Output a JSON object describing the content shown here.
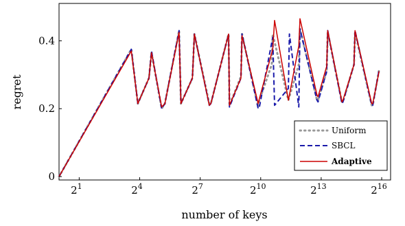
{
  "chart_data": {
    "type": "line",
    "xlabel": "number of keys",
    "ylabel": "regret",
    "x_scale": "log2",
    "x_ticks": [
      {
        "base": "2",
        "exp": "1"
      },
      {
        "base": "2",
        "exp": "4"
      },
      {
        "base": "2",
        "exp": "7"
      },
      {
        "base": "2",
        "exp": "10"
      },
      {
        "base": "2",
        "exp": "13"
      },
      {
        "base": "2",
        "exp": "16"
      }
    ],
    "y_ticks": [
      "0",
      "0.2",
      "0.4"
    ],
    "xlim": [
      1,
      89000
    ],
    "ylim": [
      -0.01,
      0.51
    ],
    "grid": false,
    "legend_position": "bottom-right",
    "series": [
      {
        "name": "Uniform",
        "color": "#999999",
        "style": "dotted",
        "x": [
          1,
          12,
          15,
          22,
          24,
          34,
          38,
          62,
          66,
          98,
          105,
          175,
          185,
          340,
          350,
          520,
          540,
          940,
          980,
          1500,
          1550,
          2650,
          2750,
          3800,
          3950,
          7100,
          7350,
          9900,
          10250,
          16700,
          17300,
          25300,
          26200,
          46500,
          48200,
          60000
        ],
        "y": [
          0,
          0.375,
          0.215,
          0.29,
          0.365,
          0.2,
          0.215,
          0.43,
          0.215,
          0.29,
          0.42,
          0.215,
          0.215,
          0.42,
          0.21,
          0.295,
          0.42,
          0.205,
          0.225,
          0.33,
          0.42,
          0.225,
          0.235,
          0.33,
          0.435,
          0.225,
          0.225,
          0.31,
          0.425,
          0.22,
          0.22,
          0.33,
          0.425,
          0.21,
          0.21,
          0.315
        ]
      },
      {
        "name": "SBCL",
        "color": "#1a1aaa",
        "style": "dashed",
        "x": [
          1,
          12,
          15,
          22,
          24,
          34,
          38,
          62,
          66,
          98,
          105,
          175,
          185,
          340,
          350,
          520,
          540,
          940,
          980,
          1550,
          1650,
          2650,
          2750,
          3800,
          3950,
          7100,
          7350,
          9900,
          10250,
          16700,
          17300,
          25300,
          26200,
          46500,
          48200,
          60000
        ],
        "y": [
          0,
          0.375,
          0.215,
          0.29,
          0.37,
          0.2,
          0.215,
          0.43,
          0.215,
          0.29,
          0.42,
          0.21,
          0.215,
          0.42,
          0.205,
          0.29,
          0.42,
          0.2,
          0.205,
          0.41,
          0.21,
          0.26,
          0.42,
          0.205,
          0.435,
          0.225,
          0.22,
          0.31,
          0.43,
          0.215,
          0.22,
          0.33,
          0.43,
          0.21,
          0.21,
          0.315
        ]
      },
      {
        "name": "Adaptive",
        "color": "#cc0000",
        "style": "solid",
        "x": [
          1,
          12,
          15,
          22,
          24,
          34,
          38,
          62,
          66,
          98,
          105,
          175,
          185,
          340,
          350,
          520,
          540,
          940,
          980,
          1550,
          1650,
          2650,
          2750,
          3800,
          3950,
          7100,
          7350,
          9900,
          10250,
          16700,
          17300,
          25300,
          26200,
          46500,
          48200,
          60000
        ],
        "y": [
          0,
          0.37,
          0.215,
          0.29,
          0.365,
          0.205,
          0.215,
          0.425,
          0.215,
          0.29,
          0.42,
          0.21,
          0.215,
          0.42,
          0.21,
          0.29,
          0.415,
          0.215,
          0.23,
          0.375,
          0.46,
          0.225,
          0.24,
          0.385,
          0.465,
          0.24,
          0.235,
          0.325,
          0.43,
          0.22,
          0.225,
          0.33,
          0.43,
          0.215,
          0.215,
          0.31
        ]
      }
    ]
  }
}
